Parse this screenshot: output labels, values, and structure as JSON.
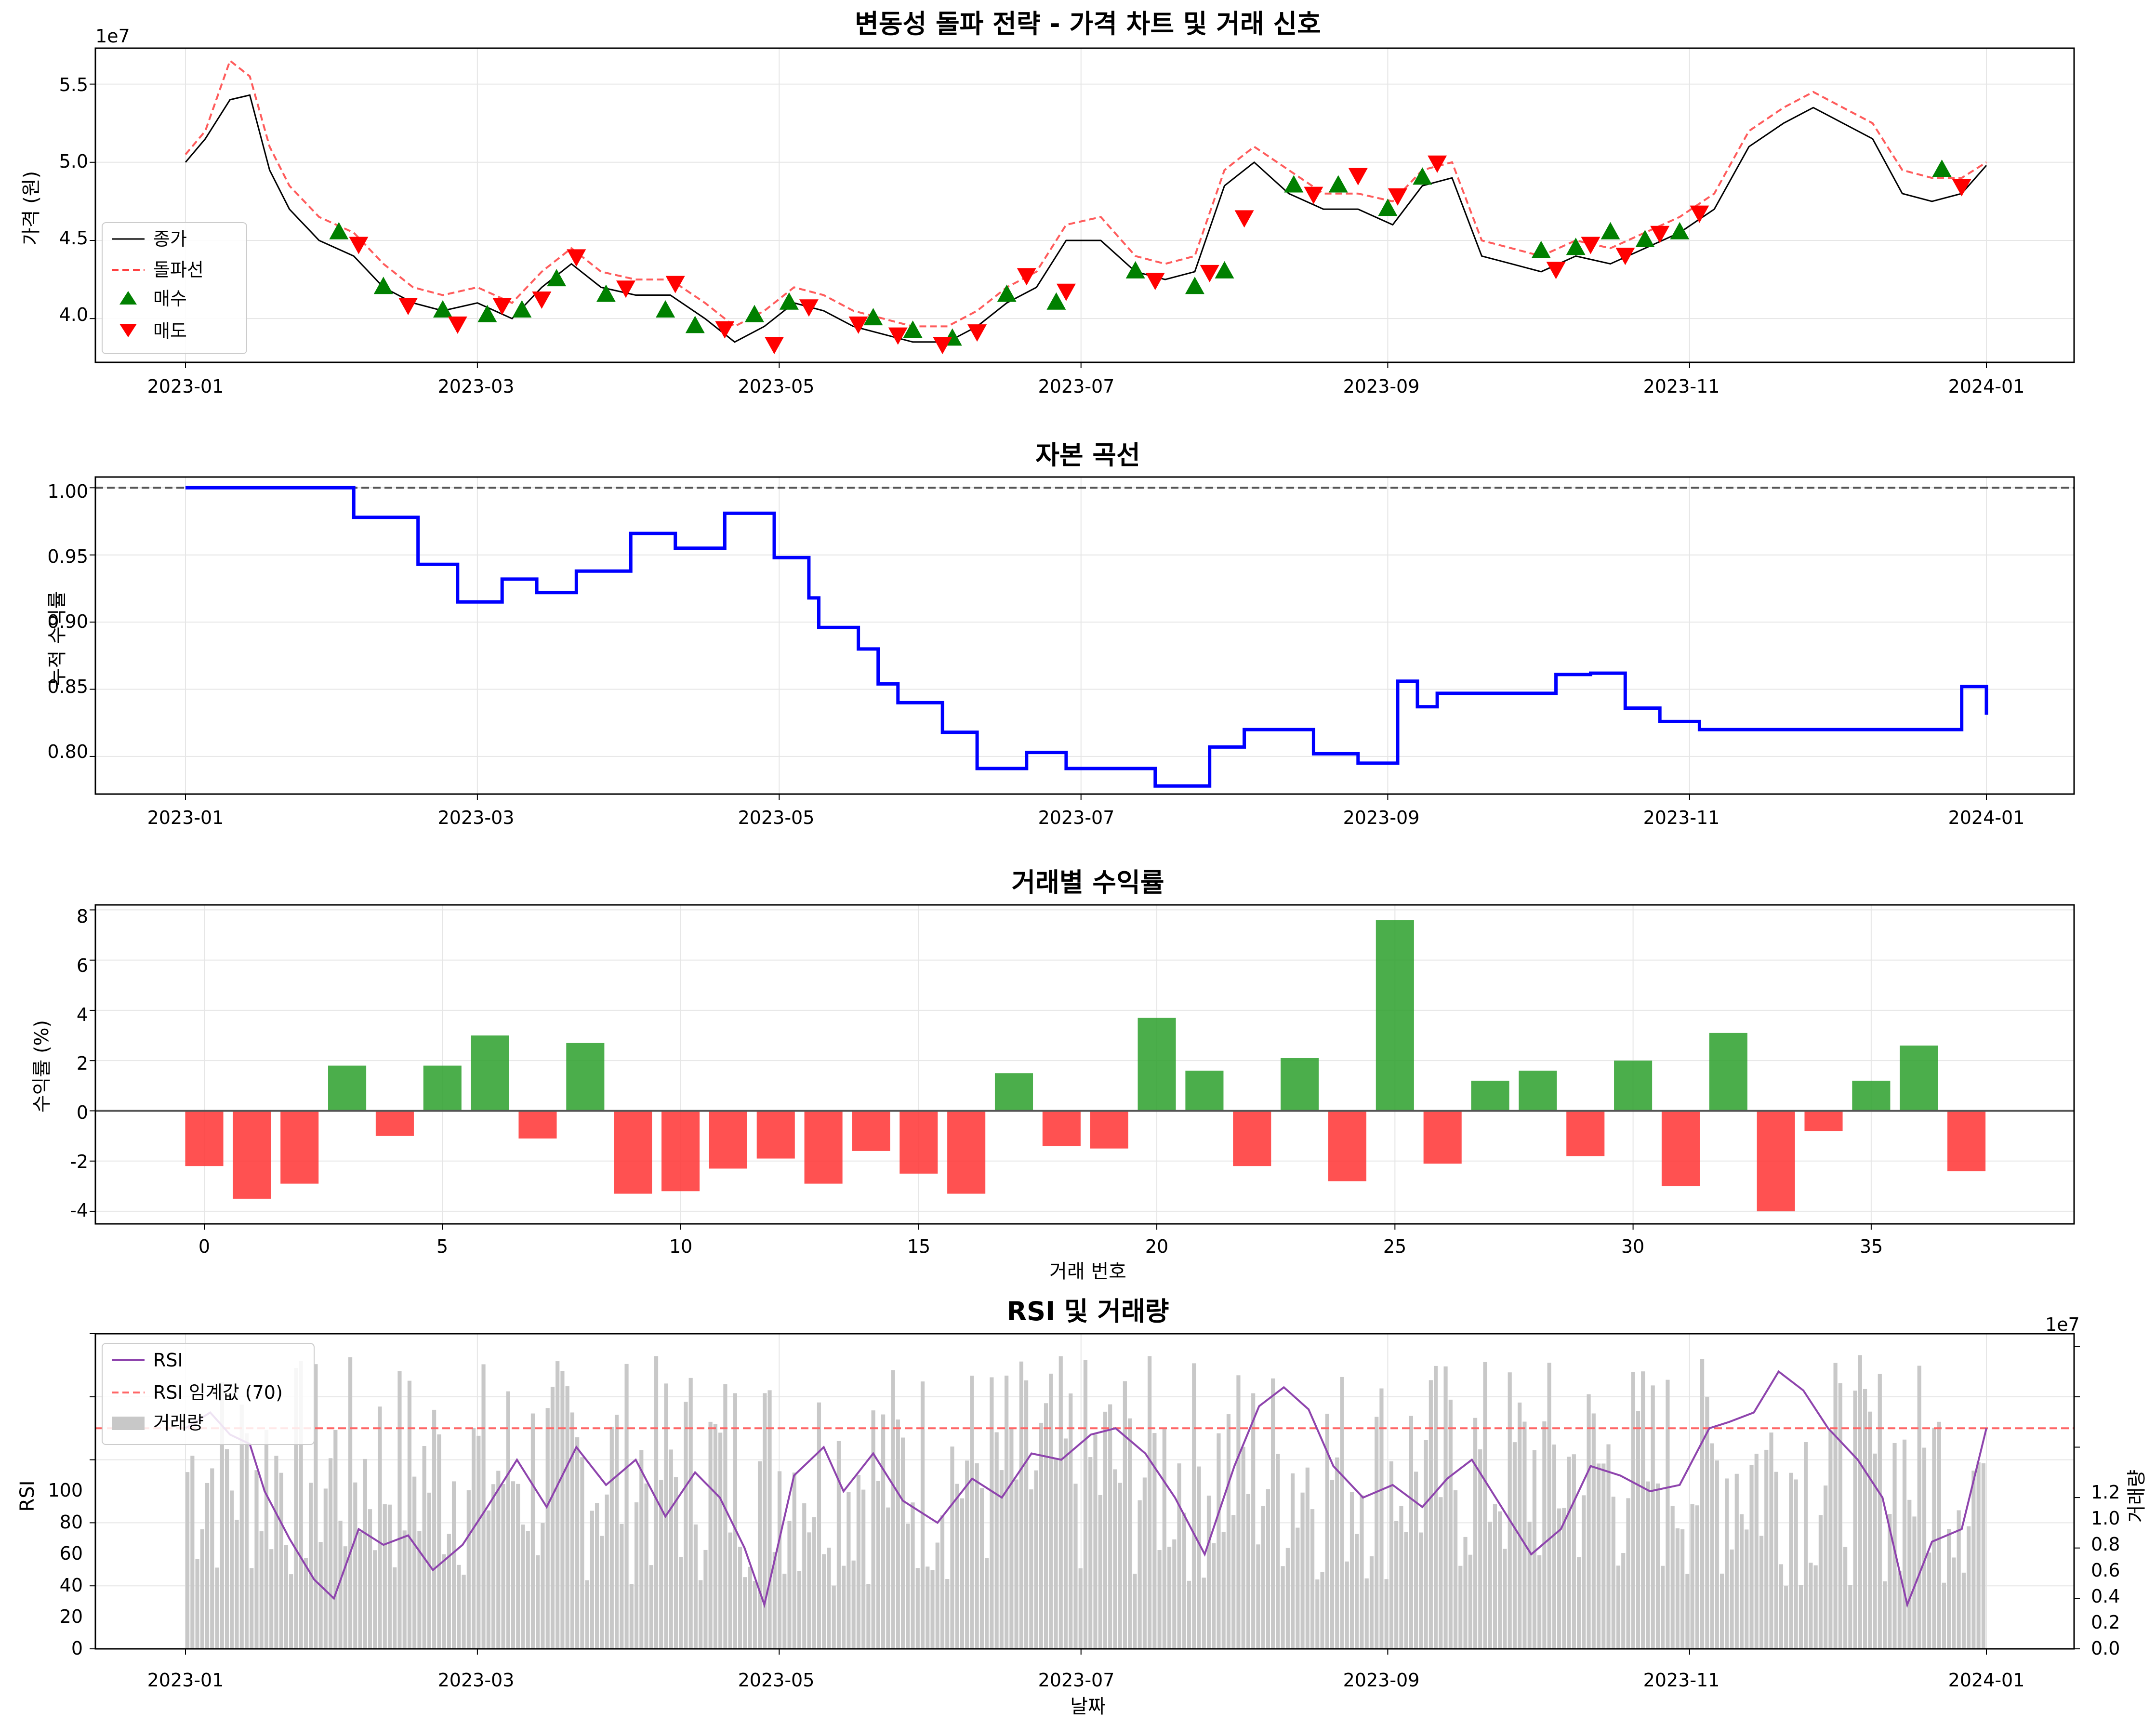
{
  "colors": {
    "close": "#000000",
    "breakout": "#ff4040",
    "buy": "#008000",
    "sell": "#ff0000",
    "equity": "#0000ff",
    "profit_pos": "#2ca02c",
    "profit_neg": "#ff3333",
    "rsi": "#8e44ad",
    "volume": "#c8c8c8",
    "threshold": "#ff6666"
  },
  "x_dates": [
    "2023-01",
    "2023-03",
    "2023-05",
    "2023-07",
    "2023-09",
    "2023-11",
    "2024-01"
  ],
  "panels": {
    "price": {
      "title": "변동성 돌파 전략 - 가격 차트 및 거래 신호",
      "ylabel": "가격 (원)",
      "offset_text": "1e7",
      "yticks": [
        "4.0",
        "4.5",
        "5.0",
        "5.5"
      ],
      "legend": {
        "close": "종가",
        "breakout": "돌파선",
        "buy": "매수",
        "sell": "매도"
      }
    },
    "equity": {
      "title": "자본 곡선",
      "ylabel": "누적 수익률",
      "yticks": [
        "0.80",
        "0.85",
        "0.90",
        "0.95",
        "1.00"
      ]
    },
    "trades": {
      "title": "거래별 수익률",
      "ylabel": "수익률 (%)",
      "xlabel": "거래 번호",
      "xticks": [
        "0",
        "5",
        "10",
        "15",
        "20",
        "25",
        "30",
        "35"
      ],
      "yticks": [
        "-4",
        "-2",
        "0",
        "2",
        "4",
        "6",
        "8"
      ]
    },
    "rsi": {
      "title": "RSI 및 거래량",
      "ylabel": "RSI",
      "ylabel2": "거래량",
      "xlabel": "날짜",
      "offset_text": "1e7",
      "yticks": [
        "0",
        "20",
        "40",
        "60",
        "80",
        "100"
      ],
      "y2ticks": [
        "0.0",
        "0.2",
        "0.4",
        "0.6",
        "0.8",
        "1.0",
        "1.2"
      ],
      "legend": {
        "rsi": "RSI",
        "threshold": "RSI 임계값 (70)",
        "volume": "거래량"
      }
    }
  },
  "chart_data": [
    {
      "type": "line",
      "title": "변동성 돌파 전략 - 가격 차트 및 거래 신호",
      "ylabel": "가격 (원)",
      "x_range": [
        "2023-01-01",
        "2023-12-31"
      ],
      "ylim": [
        37200000,
        57300000
      ],
      "grid": true,
      "legend": "upper-left",
      "series": [
        {
          "name": "종가",
          "x": [
            "2023-01-01",
            "2023-01-05",
            "2023-01-10",
            "2023-01-14",
            "2023-01-18",
            "2023-01-22",
            "2023-01-28",
            "2023-02-04",
            "2023-02-10",
            "2023-02-16",
            "2023-02-22",
            "2023-03-01",
            "2023-03-08",
            "2023-03-14",
            "2023-03-20",
            "2023-03-26",
            "2023-04-02",
            "2023-04-09",
            "2023-04-16",
            "2023-04-22",
            "2023-04-28",
            "2023-05-04",
            "2023-05-10",
            "2023-05-16",
            "2023-05-22",
            "2023-05-28",
            "2023-06-04",
            "2023-06-10",
            "2023-06-16",
            "2023-06-22",
            "2023-06-28",
            "2023-07-05",
            "2023-07-12",
            "2023-07-18",
            "2023-07-24",
            "2023-07-30",
            "2023-08-05",
            "2023-08-12",
            "2023-08-19",
            "2023-08-26",
            "2023-09-02",
            "2023-09-08",
            "2023-09-14",
            "2023-09-20",
            "2023-09-26",
            "2023-10-02",
            "2023-10-09",
            "2023-10-16",
            "2023-10-23",
            "2023-10-30",
            "2023-11-06",
            "2023-11-13",
            "2023-11-20",
            "2023-11-26",
            "2023-12-02",
            "2023-12-08",
            "2023-12-14",
            "2023-12-20",
            "2023-12-26",
            "2023-12-31"
          ],
          "y": [
            50000000,
            51500000,
            54000000,
            54300000,
            49500000,
            47000000,
            45000000,
            44000000,
            42000000,
            41000000,
            40500000,
            41000000,
            40000000,
            42000000,
            43500000,
            42000000,
            41500000,
            41500000,
            40000000,
            38500000,
            39500000,
            41000000,
            40500000,
            39500000,
            39000000,
            38500000,
            38500000,
            39500000,
            41000000,
            42000000,
            45000000,
            45000000,
            43000000,
            42500000,
            43000000,
            48500000,
            50000000,
            48000000,
            47000000,
            47000000,
            46000000,
            48500000,
            49000000,
            44000000,
            43500000,
            43000000,
            44000000,
            43500000,
            44500000,
            45500000,
            47000000,
            51000000,
            52500000,
            53500000,
            52500000,
            51500000,
            48000000,
            47500000,
            48000000,
            49800000
          ]
        },
        {
          "name": "돌파선",
          "x": [
            "2023-01-01",
            "2023-01-05",
            "2023-01-10",
            "2023-01-14",
            "2023-01-18",
            "2023-01-22",
            "2023-01-28",
            "2023-02-04",
            "2023-02-10",
            "2023-02-16",
            "2023-02-22",
            "2023-03-01",
            "2023-03-08",
            "2023-03-14",
            "2023-03-20",
            "2023-03-26",
            "2023-04-02",
            "2023-04-09",
            "2023-04-16",
            "2023-04-22",
            "2023-04-28",
            "2023-05-04",
            "2023-05-10",
            "2023-05-16",
            "2023-05-22",
            "2023-05-28",
            "2023-06-04",
            "2023-06-10",
            "2023-06-16",
            "2023-06-22",
            "2023-06-28",
            "2023-07-05",
            "2023-07-12",
            "2023-07-18",
            "2023-07-24",
            "2023-07-30",
            "2023-08-05",
            "2023-08-12",
            "2023-08-19",
            "2023-08-26",
            "2023-09-02",
            "2023-09-08",
            "2023-09-14",
            "2023-09-20",
            "2023-09-26",
            "2023-10-02",
            "2023-10-09",
            "2023-10-16",
            "2023-10-23",
            "2023-10-30",
            "2023-11-06",
            "2023-11-13",
            "2023-11-20",
            "2023-11-26",
            "2023-12-02",
            "2023-12-08",
            "2023-12-14",
            "2023-12-20",
            "2023-12-26",
            "2023-12-31"
          ],
          "y": [
            50500000,
            52000000,
            56500000,
            55500000,
            51000000,
            48500000,
            46500000,
            45500000,
            43500000,
            42000000,
            41500000,
            42000000,
            41000000,
            43000000,
            44500000,
            43000000,
            42500000,
            42500000,
            41000000,
            39500000,
            40500000,
            42000000,
            41500000,
            40500000,
            40000000,
            39500000,
            39500000,
            40500000,
            42000000,
            43000000,
            46000000,
            46500000,
            44000000,
            43500000,
            44000000,
            49500000,
            51000000,
            49500000,
            48000000,
            48000000,
            47500000,
            49500000,
            50000000,
            45000000,
            44500000,
            44000000,
            45000000,
            44500000,
            45500000,
            46500000,
            48000000,
            52000000,
            53500000,
            54500000,
            53500000,
            52500000,
            49500000,
            49000000,
            49000000,
            50000000
          ]
        },
        {
          "name": "매수",
          "x": [
            "2023-02-01",
            "2023-02-10",
            "2023-02-22",
            "2023-03-03",
            "2023-03-10",
            "2023-03-17",
            "2023-03-27",
            "2023-04-08",
            "2023-04-14",
            "2023-04-26",
            "2023-05-03",
            "2023-05-20",
            "2023-05-28",
            "2023-06-05",
            "2023-06-16",
            "2023-06-26",
            "2023-07-12",
            "2023-07-24",
            "2023-07-30",
            "2023-08-13",
            "2023-08-22",
            "2023-09-01",
            "2023-09-08",
            "2023-10-02",
            "2023-10-09",
            "2023-10-16",
            "2023-10-23",
            "2023-10-30",
            "2023-12-22"
          ],
          "y": [
            45500000,
            42000000,
            40500000,
            40200000,
            40500000,
            42500000,
            41500000,
            40500000,
            39500000,
            40200000,
            41000000,
            40000000,
            39200000,
            38700000,
            41500000,
            41000000,
            43000000,
            42000000,
            43000000,
            48500000,
            48500000,
            47000000,
            49000000,
            44300000,
            44500000,
            45500000,
            45000000,
            45500000,
            49500000
          ]
        },
        {
          "name": "매도",
          "x": [
            "2023-02-05",
            "2023-02-15",
            "2023-02-25",
            "2023-03-06",
            "2023-03-14",
            "2023-03-21",
            "2023-03-31",
            "2023-04-10",
            "2023-04-20",
            "2023-04-30",
            "2023-05-07",
            "2023-05-17",
            "2023-05-25",
            "2023-06-03",
            "2023-06-10",
            "2023-06-20",
            "2023-06-28",
            "2023-07-16",
            "2023-07-27",
            "2023-08-03",
            "2023-08-17",
            "2023-08-26",
            "2023-09-03",
            "2023-09-11",
            "2023-10-05",
            "2023-10-12",
            "2023-10-19",
            "2023-10-26",
            "2023-11-03",
            "2023-12-26"
          ],
          "y": [
            44800000,
            40900000,
            39700000,
            40900000,
            41300000,
            44000000,
            42000000,
            42300000,
            39400000,
            38400000,
            40800000,
            39700000,
            39000000,
            38400000,
            39200000,
            42800000,
            41800000,
            42500000,
            43000000,
            46500000,
            48000000,
            49200000,
            47900000,
            50000000,
            43200000,
            44800000,
            44100000,
            45500000,
            46800000,
            48500000
          ]
        }
      ]
    },
    {
      "type": "line",
      "title": "자본 곡선",
      "ylabel": "누적 수익률",
      "x_range": [
        "2023-01-01",
        "2023-12-31"
      ],
      "ylim": [
        0.772,
        1.008
      ],
      "grid": true,
      "baseline": 1.0,
      "series": [
        {
          "name": "",
          "x": [
            "2023-01-01",
            "2023-02-04",
            "2023-02-17",
            "2023-02-25",
            "2023-03-06",
            "2023-03-13",
            "2023-03-21",
            "2023-04-01",
            "2023-04-10",
            "2023-04-20",
            "2023-04-30",
            "2023-05-07",
            "2023-05-09",
            "2023-05-17",
            "2023-05-21",
            "2023-05-25",
            "2023-06-03",
            "2023-06-10",
            "2023-06-20",
            "2023-06-28",
            "2023-07-16",
            "2023-07-27",
            "2023-08-03",
            "2023-08-17",
            "2023-08-26",
            "2023-09-03",
            "2023-09-07",
            "2023-09-11",
            "2023-10-05",
            "2023-10-12",
            "2023-10-19",
            "2023-10-26",
            "2023-11-03",
            "2023-12-26",
            "2023-12-31"
          ],
          "y": [
            1.0,
            0.978,
            0.943,
            0.915,
            0.932,
            0.922,
            0.938,
            0.966,
            0.955,
            0.981,
            0.948,
            0.918,
            0.896,
            0.88,
            0.854,
            0.84,
            0.818,
            0.791,
            0.803,
            0.791,
            0.778,
            0.807,
            0.82,
            0.802,
            0.795,
            0.856,
            0.837,
            0.847,
            0.861,
            0.862,
            0.836,
            0.826,
            0.82,
            0.852,
            0.831
          ]
        }
      ]
    },
    {
      "type": "bar",
      "title": "거래별 수익률",
      "xlabel": "거래 번호",
      "ylabel": "수익률 (%)",
      "ylim": [
        -4.5,
        8.2
      ],
      "grid": true,
      "categories": [
        0,
        1,
        2,
        3,
        4,
        5,
        6,
        7,
        8,
        9,
        10,
        11,
        12,
        13,
        14,
        15,
        16,
        17,
        18,
        19,
        20,
        21,
        22,
        23,
        24,
        25,
        26,
        27,
        28,
        29,
        30,
        31,
        32,
        33,
        34,
        35,
        36,
        37
      ],
      "values": [
        -2.2,
        -3.5,
        -2.9,
        1.8,
        -1.0,
        1.8,
        3.0,
        -1.1,
        2.7,
        -3.3,
        -3.2,
        -2.3,
        -1.9,
        -2.9,
        -1.6,
        -2.5,
        -3.3,
        1.5,
        -1.4,
        -1.5,
        3.7,
        1.6,
        -2.2,
        2.1,
        -2.8,
        7.6,
        -2.1,
        1.2,
        1.6,
        -1.8,
        2.0,
        -3.0,
        3.1,
        -4.0,
        -0.8,
        1.2,
        2.6,
        -2.4
      ]
    },
    {
      "type": "line",
      "title": "RSI 및 거래량",
      "xlabel": "날짜",
      "ylabel": "RSI",
      "ylabel2": "거래량",
      "x_range": [
        "2023-01-01",
        "2023-12-31"
      ],
      "ylim": [
        0,
        100
      ],
      "y2lim": [
        0,
        12500000
      ],
      "threshold": 70,
      "grid": true,
      "legend": "upper-left",
      "series": [
        {
          "name": "RSI",
          "x": [
            "2023-01-01",
            "2023-01-06",
            "2023-01-10",
            "2023-01-14",
            "2023-01-17",
            "2023-01-22",
            "2023-01-27",
            "2023-01-31",
            "2023-02-05",
            "2023-02-10",
            "2023-02-15",
            "2023-02-20",
            "2023-02-26",
            "2023-03-03",
            "2023-03-09",
            "2023-03-15",
            "2023-03-21",
            "2023-03-27",
            "2023-04-02",
            "2023-04-08",
            "2023-04-14",
            "2023-04-19",
            "2023-04-24",
            "2023-04-28",
            "2023-05-04",
            "2023-05-10",
            "2023-05-14",
            "2023-05-20",
            "2023-05-26",
            "2023-06-02",
            "2023-06-09",
            "2023-06-15",
            "2023-06-21",
            "2023-06-27",
            "2023-07-03",
            "2023-07-08",
            "2023-07-14",
            "2023-07-20",
            "2023-07-26",
            "2023-08-01",
            "2023-08-06",
            "2023-08-11",
            "2023-08-16",
            "2023-08-21",
            "2023-08-27",
            "2023-09-02",
            "2023-09-08",
            "2023-09-13",
            "2023-09-18",
            "2023-09-24",
            "2023-09-30",
            "2023-10-06",
            "2023-10-12",
            "2023-10-18",
            "2023-10-24",
            "2023-10-30",
            "2023-11-05",
            "2023-11-09",
            "2023-11-14",
            "2023-11-19",
            "2023-11-24",
            "2023-11-29",
            "2023-12-05",
            "2023-12-10",
            "2023-12-15",
            "2023-12-20",
            "2023-12-26",
            "2023-12-31"
          ],
          "y": [
            70,
            75,
            68,
            65,
            50,
            35,
            22,
            16,
            38,
            33,
            36,
            25,
            33,
            45,
            60,
            45,
            64,
            52,
            60,
            42,
            56,
            48,
            32,
            14,
            55,
            64,
            50,
            62,
            47,
            40,
            54,
            48,
            62,
            60,
            68,
            70,
            62,
            48,
            30,
            58,
            77,
            83,
            76,
            58,
            48,
            52,
            45,
            54,
            60,
            45,
            30,
            38,
            58,
            55,
            50,
            52,
            70,
            72,
            75,
            88,
            82,
            70,
            60,
            48,
            14,
            34,
            38,
            70
          ]
        },
        {
          "name": "RSI 임계값 (70)",
          "y": [
            70
          ]
        }
      ]
    }
  ]
}
